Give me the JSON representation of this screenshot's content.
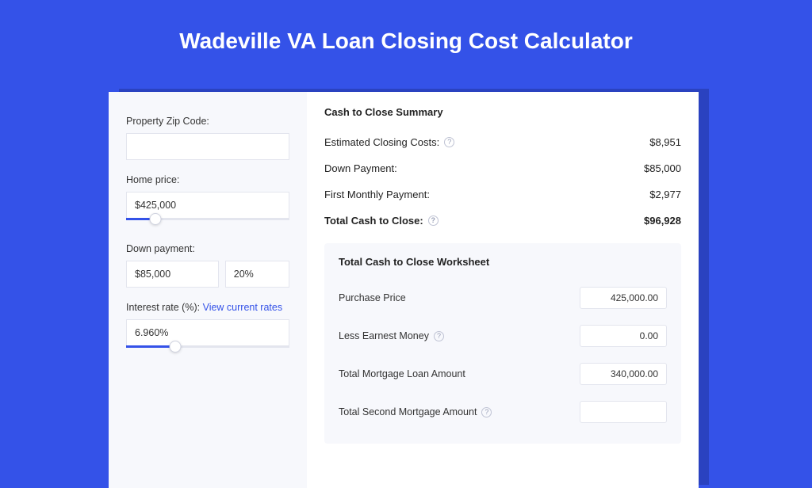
{
  "colors": {
    "page_bg": "#3452e8",
    "card_bg": "#ffffff",
    "panel_bg": "#f7f8fc",
    "border": "#e3e5ee",
    "link": "#3452e8",
    "text": "#333333"
  },
  "header": {
    "title": "Wadeville VA Loan Closing Cost Calculator"
  },
  "form": {
    "zip": {
      "label": "Property Zip Code:",
      "value": ""
    },
    "home_price": {
      "label": "Home price:",
      "value": "$425,000",
      "slider_pct": 18
    },
    "down_payment": {
      "label": "Down payment:",
      "value": "$85,000",
      "pct_value": "20%",
      "slider_pct": 0
    },
    "interest": {
      "label": "Interest rate (%):",
      "link_text": "View current rates",
      "value": "6.960%",
      "slider_pct": 30
    }
  },
  "summary": {
    "heading": "Cash to Close Summary",
    "rows": [
      {
        "label": "Estimated Closing Costs:",
        "help": true,
        "value": "$8,951"
      },
      {
        "label": "Down Payment:",
        "help": false,
        "value": "$85,000"
      },
      {
        "label": "First Monthly Payment:",
        "help": false,
        "value": "$2,977"
      }
    ],
    "total": {
      "label": "Total Cash to Close:",
      "help": true,
      "value": "$96,928"
    }
  },
  "worksheet": {
    "heading": "Total Cash to Close Worksheet",
    "rows": [
      {
        "label": "Purchase Price",
        "help": false,
        "value": "425,000.00"
      },
      {
        "label": "Less Earnest Money",
        "help": true,
        "value": "0.00"
      },
      {
        "label": "Total Mortgage Loan Amount",
        "help": false,
        "value": "340,000.00"
      },
      {
        "label": "Total Second Mortgage Amount",
        "help": true,
        "value": ""
      }
    ]
  }
}
